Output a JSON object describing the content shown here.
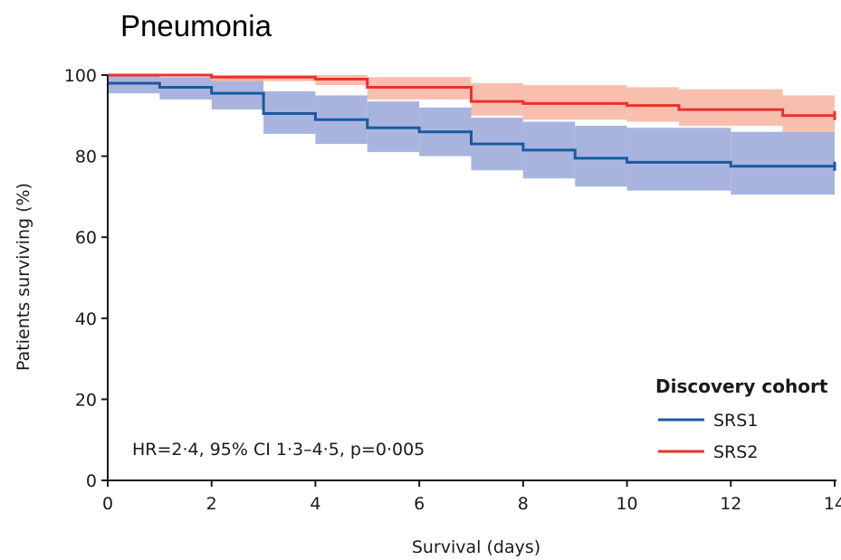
{
  "chart_data": {
    "type": "line",
    "title": "Pneumonia",
    "xlabel": "Survival (days)",
    "ylabel": "Patients surviving (%)",
    "xlim": [
      0,
      14
    ],
    "ylim": [
      0,
      100
    ],
    "x_ticks": [
      "0",
      "2",
      "4",
      "6",
      "8",
      "10",
      "12",
      "14"
    ],
    "y_ticks": [
      "0",
      "20",
      "40",
      "60",
      "80",
      "100"
    ],
    "grid": false,
    "legend": {
      "title": "Discovery cohort",
      "placement": "bottom-right"
    },
    "annotation": "HR=2·4, 95% CI 1·3–4·5, p=0·005",
    "series": [
      {
        "name": "SRS1",
        "color": "#1a5aa0",
        "band_color": "#9aa7d8",
        "steps": [
          {
            "x": 0,
            "y": 98,
            "lo": 95.5,
            "hi": 100
          },
          {
            "x": 1,
            "y": 97,
            "lo": 94,
            "hi": 99.5
          },
          {
            "x": 2,
            "y": 95.5,
            "lo": 91.5,
            "hi": 99
          },
          {
            "x": 3,
            "y": 90.5,
            "lo": 85.5,
            "hi": 96
          },
          {
            "x": 4,
            "y": 89,
            "lo": 83,
            "hi": 95
          },
          {
            "x": 5,
            "y": 87,
            "lo": 81,
            "hi": 93.5
          },
          {
            "x": 6,
            "y": 86,
            "lo": 80,
            "hi": 92
          },
          {
            "x": 7,
            "y": 83,
            "lo": 76.5,
            "hi": 89.5
          },
          {
            "x": 8,
            "y": 81.5,
            "lo": 74.5,
            "hi": 88.5
          },
          {
            "x": 9,
            "y": 79.5,
            "lo": 72.5,
            "hi": 87.5
          },
          {
            "x": 10,
            "y": 78.5,
            "lo": 71.5,
            "hi": 87
          },
          {
            "x": 12,
            "y": 77.5,
            "lo": 70.5,
            "hi": 86
          }
        ],
        "x_end": 14
      },
      {
        "name": "SRS2",
        "color": "#e8322b",
        "band_color": "#f7b4a0",
        "steps": [
          {
            "x": 0,
            "y": 100,
            "lo": 100,
            "hi": 100
          },
          {
            "x": 2,
            "y": 99.5,
            "lo": 98.5,
            "hi": 100
          },
          {
            "x": 4,
            "y": 99,
            "lo": 97.5,
            "hi": 100
          },
          {
            "x": 5,
            "y": 97,
            "lo": 94,
            "hi": 99.5
          },
          {
            "x": 7,
            "y": 93.5,
            "lo": 90,
            "hi": 98
          },
          {
            "x": 8,
            "y": 93,
            "lo": 89,
            "hi": 97.5
          },
          {
            "x": 10,
            "y": 92.5,
            "lo": 88.5,
            "hi": 97
          },
          {
            "x": 11,
            "y": 91.5,
            "lo": 87.5,
            "hi": 96.5
          },
          {
            "x": 13,
            "y": 90,
            "lo": 86,
            "hi": 95
          }
        ],
        "x_end": 14
      }
    ]
  }
}
